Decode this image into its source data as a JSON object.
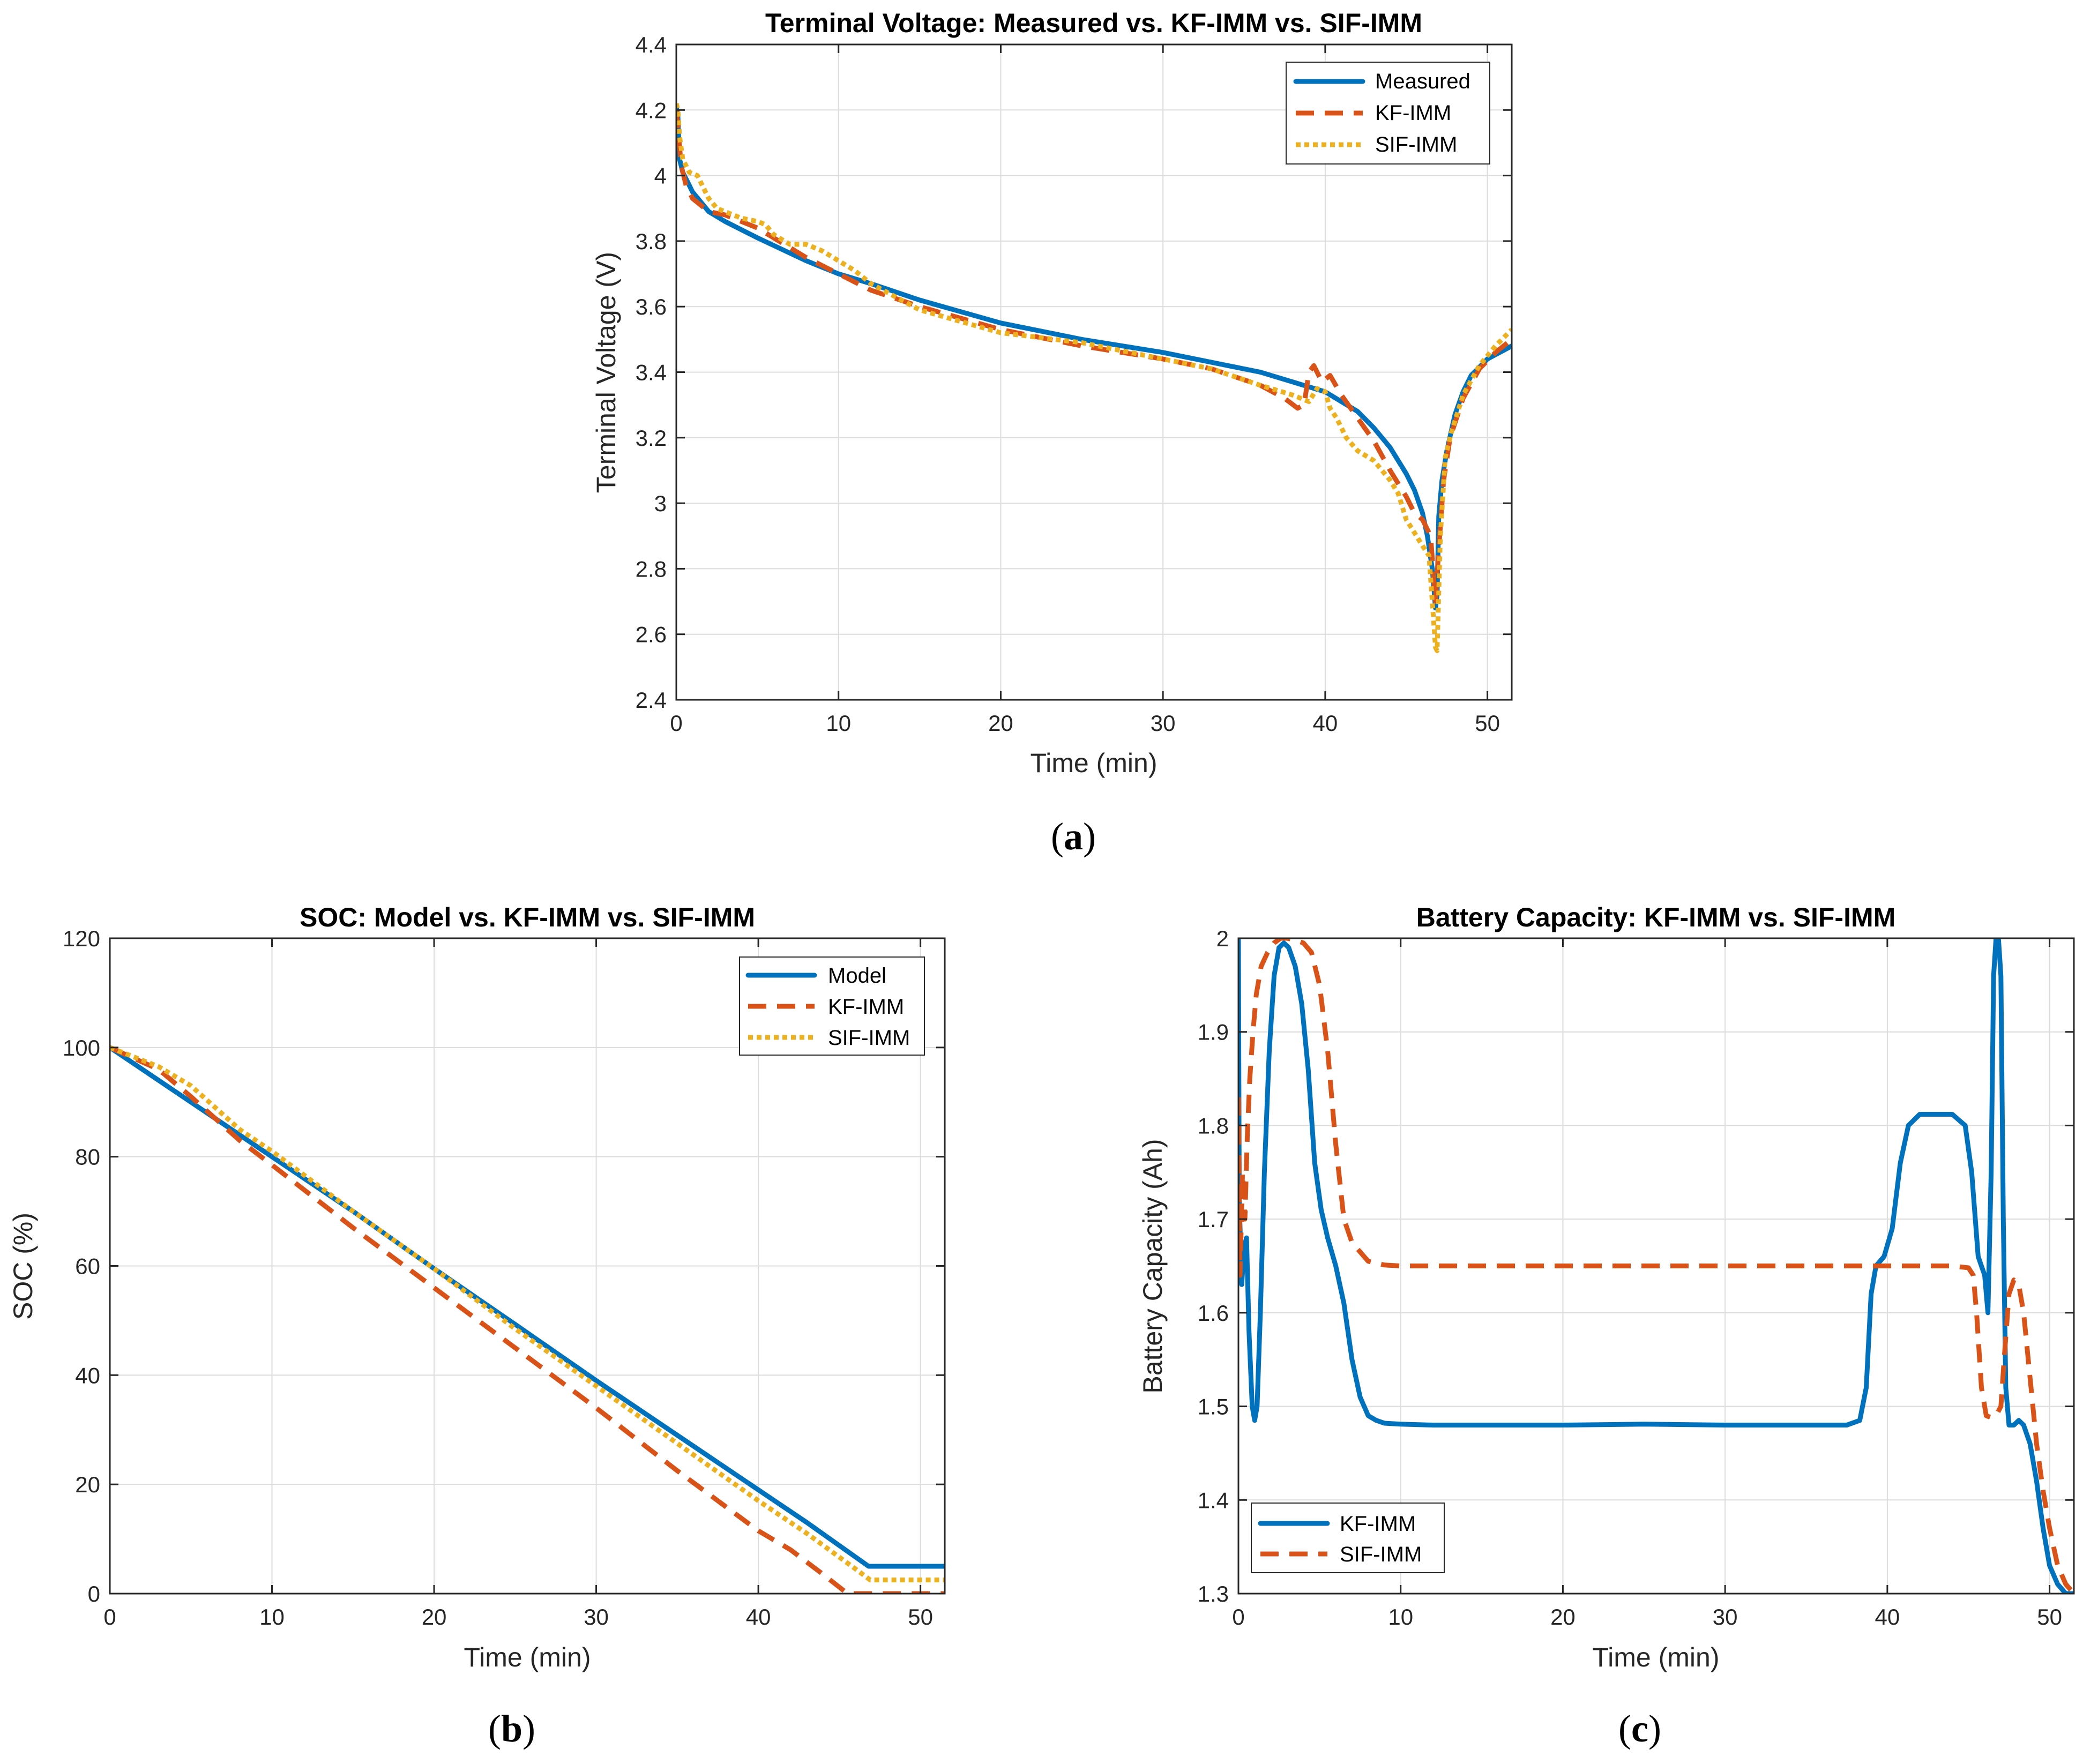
{
  "chart_data": [
    {
      "id": "a",
      "type": "line",
      "panel_label": "(a)",
      "panel_letter": "a",
      "title": "Terminal Voltage: Measured vs. KF-IMM vs. SIF-IMM",
      "xlabel": "Time (min)",
      "ylabel": "Terminal Voltage (V)",
      "xlim": [
        0,
        51.5
      ],
      "ylim": [
        2.4,
        4.4
      ],
      "xticks": [
        0,
        10,
        20,
        30,
        40,
        50
      ],
      "yticks": [
        2.4,
        2.6,
        2.8,
        3,
        3.2,
        3.4,
        3.6,
        3.8,
        4,
        4.2,
        4.4
      ],
      "xtick_labels": [
        "0",
        "10",
        "20",
        "30",
        "40",
        "50"
      ],
      "ytick_labels": [
        "2.4",
        "2.6",
        "2.8",
        "3",
        "3.2",
        "3.4",
        "3.6",
        "3.8",
        "4",
        "4.2",
        "4.4"
      ],
      "grid": true,
      "legend_position": "top-right",
      "series": [
        {
          "name": "Measured",
          "style": "solid",
          "color": "#0072BD",
          "x": [
            0,
            0.1,
            0.2,
            0.4,
            0.7,
            1,
            1.5,
            2,
            3,
            5,
            8,
            10,
            12,
            15,
            20,
            25,
            30,
            33,
            36,
            38,
            40,
            42,
            43,
            44,
            45,
            45.5,
            46,
            46.3,
            46.6,
            46.8,
            46.9,
            47.0,
            47.2,
            47.5,
            48,
            48.5,
            49,
            50,
            51.5
          ],
          "values": [
            4.21,
            4.18,
            4.05,
            4.01,
            3.98,
            3.95,
            3.92,
            3.89,
            3.86,
            3.81,
            3.74,
            3.7,
            3.67,
            3.62,
            3.55,
            3.5,
            3.46,
            3.43,
            3.4,
            3.37,
            3.34,
            3.28,
            3.23,
            3.17,
            3.09,
            3.04,
            2.97,
            2.9,
            2.8,
            2.68,
            2.72,
            2.96,
            3.07,
            3.16,
            3.27,
            3.34,
            3.39,
            3.44,
            3.48
          ]
        },
        {
          "name": "KF-IMM",
          "style": "dashed",
          "color": "#D95319",
          "x": [
            0,
            0.1,
            0.3,
            0.6,
            1,
            1.5,
            2,
            3,
            4,
            5,
            6,
            8,
            10,
            12,
            15,
            20,
            25,
            30,
            33,
            36,
            37.5,
            38.3,
            38.7,
            39.0,
            39.3,
            39.8,
            40.3,
            41,
            42,
            43,
            44,
            45,
            45.5,
            46,
            46.5,
            46.8,
            47.0,
            47.3,
            47.7,
            48.5,
            49.5,
            50.5,
            51.5
          ],
          "values": [
            4.2,
            4.15,
            4.03,
            3.97,
            3.93,
            3.91,
            3.89,
            3.88,
            3.86,
            3.84,
            3.81,
            3.75,
            3.7,
            3.65,
            3.6,
            3.53,
            3.48,
            3.44,
            3.41,
            3.36,
            3.32,
            3.29,
            3.3,
            3.4,
            3.42,
            3.37,
            3.39,
            3.33,
            3.26,
            3.19,
            3.1,
            3.02,
            2.97,
            2.95,
            2.9,
            2.7,
            2.86,
            3.07,
            3.2,
            3.32,
            3.41,
            3.46,
            3.5
          ]
        },
        {
          "name": "SIF-IMM",
          "style": "dotted",
          "color": "#EDB120",
          "x": [
            0,
            0.1,
            0.2,
            0.4,
            0.8,
            1.3,
            2,
            2.5,
            3,
            4,
            5,
            5.5,
            6,
            7,
            8,
            9,
            10,
            11,
            12,
            15,
            20,
            25,
            30,
            33,
            36,
            38,
            39,
            39.5,
            40,
            40.3,
            40.7,
            41.3,
            42,
            43,
            44,
            44.5,
            45,
            45.5,
            46,
            46.4,
            46.6,
            46.8,
            46.9,
            47.1,
            47.4,
            47.8,
            48.5,
            49.5,
            50.5,
            51.5
          ],
          "values": [
            4.22,
            4.2,
            4.12,
            4.05,
            4.01,
            4.0,
            3.93,
            3.9,
            3.89,
            3.87,
            3.86,
            3.85,
            3.82,
            3.79,
            3.79,
            3.77,
            3.74,
            3.71,
            3.67,
            3.59,
            3.52,
            3.49,
            3.44,
            3.41,
            3.36,
            3.33,
            3.31,
            3.35,
            3.34,
            3.29,
            3.26,
            3.2,
            3.16,
            3.13,
            3.07,
            3.03,
            2.95,
            2.91,
            2.87,
            2.84,
            2.7,
            2.56,
            2.55,
            2.9,
            3.14,
            3.22,
            3.33,
            3.42,
            3.48,
            3.53
          ]
        }
      ]
    },
    {
      "id": "b",
      "type": "line",
      "panel_label": "(b)",
      "panel_letter": "b",
      "title": "SOC: Model vs. KF-IMM vs. SIF-IMM",
      "xlabel": "Time (min)",
      "ylabel": "SOC (%)",
      "xlim": [
        0,
        51.5
      ],
      "ylim": [
        0,
        120
      ],
      "xticks": [
        0,
        10,
        20,
        30,
        40,
        50
      ],
      "yticks": [
        0,
        20,
        40,
        60,
        80,
        100,
        120
      ],
      "xtick_labels": [
        "0",
        "10",
        "20",
        "30",
        "40",
        "50"
      ],
      "ytick_labels": [
        "0",
        "20",
        "40",
        "60",
        "80",
        "100",
        "120"
      ],
      "grid": true,
      "legend_position": "top-right",
      "series": [
        {
          "name": "Model",
          "style": "solid",
          "color": "#0072BD",
          "x": [
            0,
            5,
            10,
            15,
            20,
            25,
            30,
            35,
            40,
            43,
            46.8,
            51.5
          ],
          "values": [
            100,
            90,
            80,
            70,
            59.5,
            49.3,
            39,
            29,
            19,
            13,
            5,
            5
          ]
        },
        {
          "name": "KF-IMM",
          "style": "dashed",
          "color": "#D95319",
          "x": [
            0,
            3,
            5,
            8,
            10,
            15,
            20,
            25,
            30,
            35,
            40,
            42,
            44,
            45.5,
            46.5,
            47.5,
            51.5
          ],
          "values": [
            100,
            96,
            91,
            83,
            78.5,
            67,
            56,
            45,
            34,
            22.5,
            11.5,
            8,
            3.5,
            0,
            0,
            0,
            0
          ]
        },
        {
          "name": "SIF-IMM",
          "style": "dotted",
          "color": "#EDB120",
          "x": [
            0,
            3,
            5,
            8,
            10,
            15,
            20,
            25,
            30,
            35,
            40,
            43,
            46,
            46.9,
            47.5,
            51.5
          ],
          "values": [
            100,
            96.5,
            93,
            85,
            81,
            70,
            59.5,
            48.5,
            38,
            27.5,
            17,
            11,
            4.5,
            2.5,
            2.5,
            2.5
          ]
        }
      ]
    },
    {
      "id": "c",
      "type": "line",
      "panel_label": "(c)",
      "panel_letter": "c",
      "title": "Battery Capacity: KF-IMM vs. SIF-IMM",
      "xlabel": "Time (min)",
      "ylabel": "Battery Capacity (Ah)",
      "xlim": [
        0,
        51.5
      ],
      "ylim": [
        1.3,
        2.0
      ],
      "xticks": [
        0,
        10,
        20,
        30,
        40,
        50
      ],
      "yticks": [
        1.3,
        1.4,
        1.5,
        1.6,
        1.7,
        1.8,
        1.9,
        2.0
      ],
      "xtick_labels": [
        "0",
        "10",
        "20",
        "30",
        "40",
        "50"
      ],
      "ytick_labels": [
        "1.3",
        "1.4",
        "1.5",
        "1.6",
        "1.7",
        "1.8",
        "1.9",
        "2"
      ],
      "grid": true,
      "legend_position": "bottom-left",
      "series": [
        {
          "name": "KF-IMM",
          "style": "solid",
          "color": "#0072BD",
          "x": [
            0,
            0.05,
            0.2,
            0.35,
            0.5,
            0.65,
            0.85,
            1.0,
            1.15,
            1.35,
            1.6,
            1.9,
            2.2,
            2.5,
            2.8,
            3.1,
            3.5,
            3.9,
            4.3,
            4.7,
            5.1,
            5.5,
            6.0,
            6.5,
            7.0,
            7.5,
            8.0,
            8.5,
            9.0,
            10,
            12,
            15,
            20,
            25,
            30,
            35,
            37.5,
            38.3,
            38.7,
            39.0,
            39.3,
            39.8,
            40.3,
            40.8,
            41.3,
            42,
            43,
            44,
            44.8,
            45.2,
            45.6,
            46.0,
            46.2,
            46.4,
            46.55,
            46.7,
            46.85,
            47.0,
            47.15,
            47.3,
            47.5,
            47.8,
            48.1,
            48.4,
            48.8,
            49.2,
            49.6,
            50.0,
            50.5,
            51.0,
            51.5
          ],
          "values": [
            2.0,
            1.72,
            1.63,
            1.67,
            1.68,
            1.58,
            1.5,
            1.485,
            1.5,
            1.6,
            1.75,
            1.88,
            1.96,
            1.99,
            1.995,
            1.99,
            1.97,
            1.93,
            1.86,
            1.76,
            1.71,
            1.68,
            1.65,
            1.61,
            1.55,
            1.51,
            1.49,
            1.485,
            1.482,
            1.481,
            1.48,
            1.48,
            1.48,
            1.481,
            1.48,
            1.48,
            1.48,
            1.485,
            1.52,
            1.62,
            1.65,
            1.66,
            1.69,
            1.76,
            1.8,
            1.812,
            1.812,
            1.812,
            1.8,
            1.75,
            1.66,
            1.64,
            1.6,
            1.75,
            1.96,
            2.0,
            2.0,
            1.96,
            1.7,
            1.52,
            1.48,
            1.48,
            1.485,
            1.48,
            1.46,
            1.42,
            1.37,
            1.33,
            1.31,
            1.3,
            1.3
          ]
        },
        {
          "name": "SIF-IMM",
          "style": "dashed",
          "color": "#D95319",
          "x": [
            0,
            0.1,
            0.25,
            0.4,
            0.55,
            0.7,
            0.9,
            1.1,
            1.4,
            1.8,
            2.2,
            2.6,
            3.0,
            3.5,
            4.0,
            4.5,
            5.0,
            5.5,
            6.0,
            6.5,
            7.0,
            7.5,
            8.0,
            9.0,
            10,
            12,
            15,
            20,
            25,
            30,
            35,
            40,
            44,
            45.0,
            45.3,
            45.5,
            45.8,
            46.1,
            46.4,
            46.7,
            47.0,
            47.2,
            47.5,
            47.8,
            48.1,
            48.4,
            48.8,
            49.2,
            49.6,
            50.0,
            50.5,
            51.0,
            51.5
          ],
          "values": [
            1.83,
            1.64,
            1.75,
            1.7,
            1.79,
            1.85,
            1.9,
            1.94,
            1.97,
            1.985,
            1.995,
            2.0,
            2.0,
            1.998,
            1.995,
            1.985,
            1.95,
            1.88,
            1.78,
            1.7,
            1.675,
            1.665,
            1.655,
            1.651,
            1.65,
            1.65,
            1.65,
            1.65,
            1.65,
            1.65,
            1.65,
            1.65,
            1.65,
            1.648,
            1.64,
            1.6,
            1.52,
            1.49,
            1.488,
            1.49,
            1.5,
            1.55,
            1.62,
            1.635,
            1.63,
            1.6,
            1.53,
            1.46,
            1.41,
            1.37,
            1.33,
            1.31,
            1.3
          ]
        }
      ]
    }
  ]
}
